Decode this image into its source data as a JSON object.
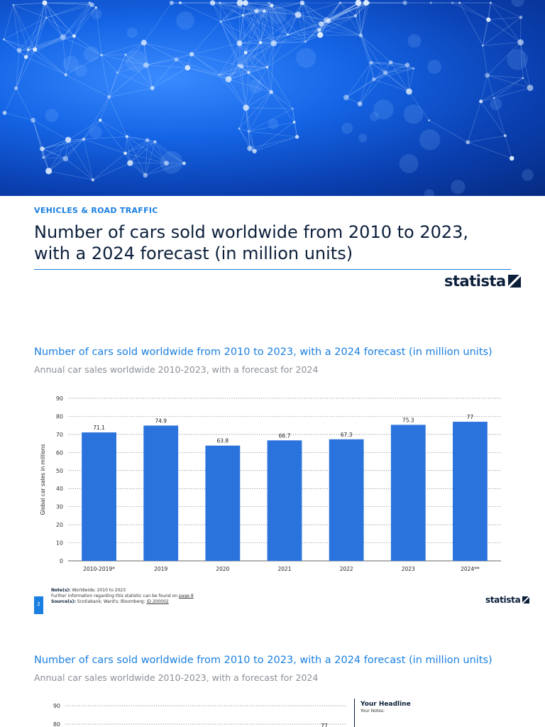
{
  "category": "VEHICLES & ROAD TRAFFIC",
  "main_title_line1": "Number of cars sold worldwide from 2010 to 2023,",
  "main_title_line2": "with a 2024 forecast (in million units)",
  "brand": "statista",
  "chart_title": "Number of cars sold worldwide from 2010 to 2023, with a 2024 forecast (in million units)",
  "chart_subtitle": "Annual car sales worldwide 2010-2023, with a forecast for 2024",
  "notes": {
    "note_label": "Note(s):",
    "note_text": "Worldwide; 2010 to 2023",
    "further_text": "Further information regarding this statistic can be found on",
    "further_link": "page 8",
    "source_label": "Source(s):",
    "source_text": "Scotiabank; Ward's; Bloomberg;",
    "source_id": "ID 200002"
  },
  "page_number": "2",
  "side_panel": {
    "headline": "Your Headline",
    "notes": "Your Notes:"
  },
  "colors": {
    "accent": "#1a7fe0",
    "bar": "#2a72dc",
    "dark": "#0b1f3a"
  },
  "chart_data": [
    {
      "type": "bar",
      "title": "Number of cars sold worldwide from 2010 to 2023, with a 2024 forecast (in million units)",
      "subtitle": "Annual car sales worldwide 2010-2023, with a forecast for 2024",
      "ylabel": "Global car sales in millions",
      "categories": [
        "2010-2019*",
        "2019",
        "2020",
        "2021",
        "2022",
        "2023",
        "2024**"
      ],
      "values": [
        71.1,
        74.9,
        63.8,
        66.7,
        67.3,
        75.3,
        77
      ],
      "ylim": [
        0,
        90
      ],
      "yticks": [
        0,
        10,
        20,
        30,
        40,
        50,
        60,
        70,
        80,
        90
      ],
      "grid": true
    },
    {
      "type": "bar",
      "title": "Number of cars sold worldwide from 2010 to 2023, with a 2024 forecast (in million units)",
      "subtitle": "Annual car sales worldwide 2010-2023, with a forecast for 2024",
      "ylim": [
        0,
        90
      ],
      "yticks_visible": [
        90,
        80
      ],
      "value_labels_visible": [
        "77"
      ],
      "grid": true
    }
  ]
}
